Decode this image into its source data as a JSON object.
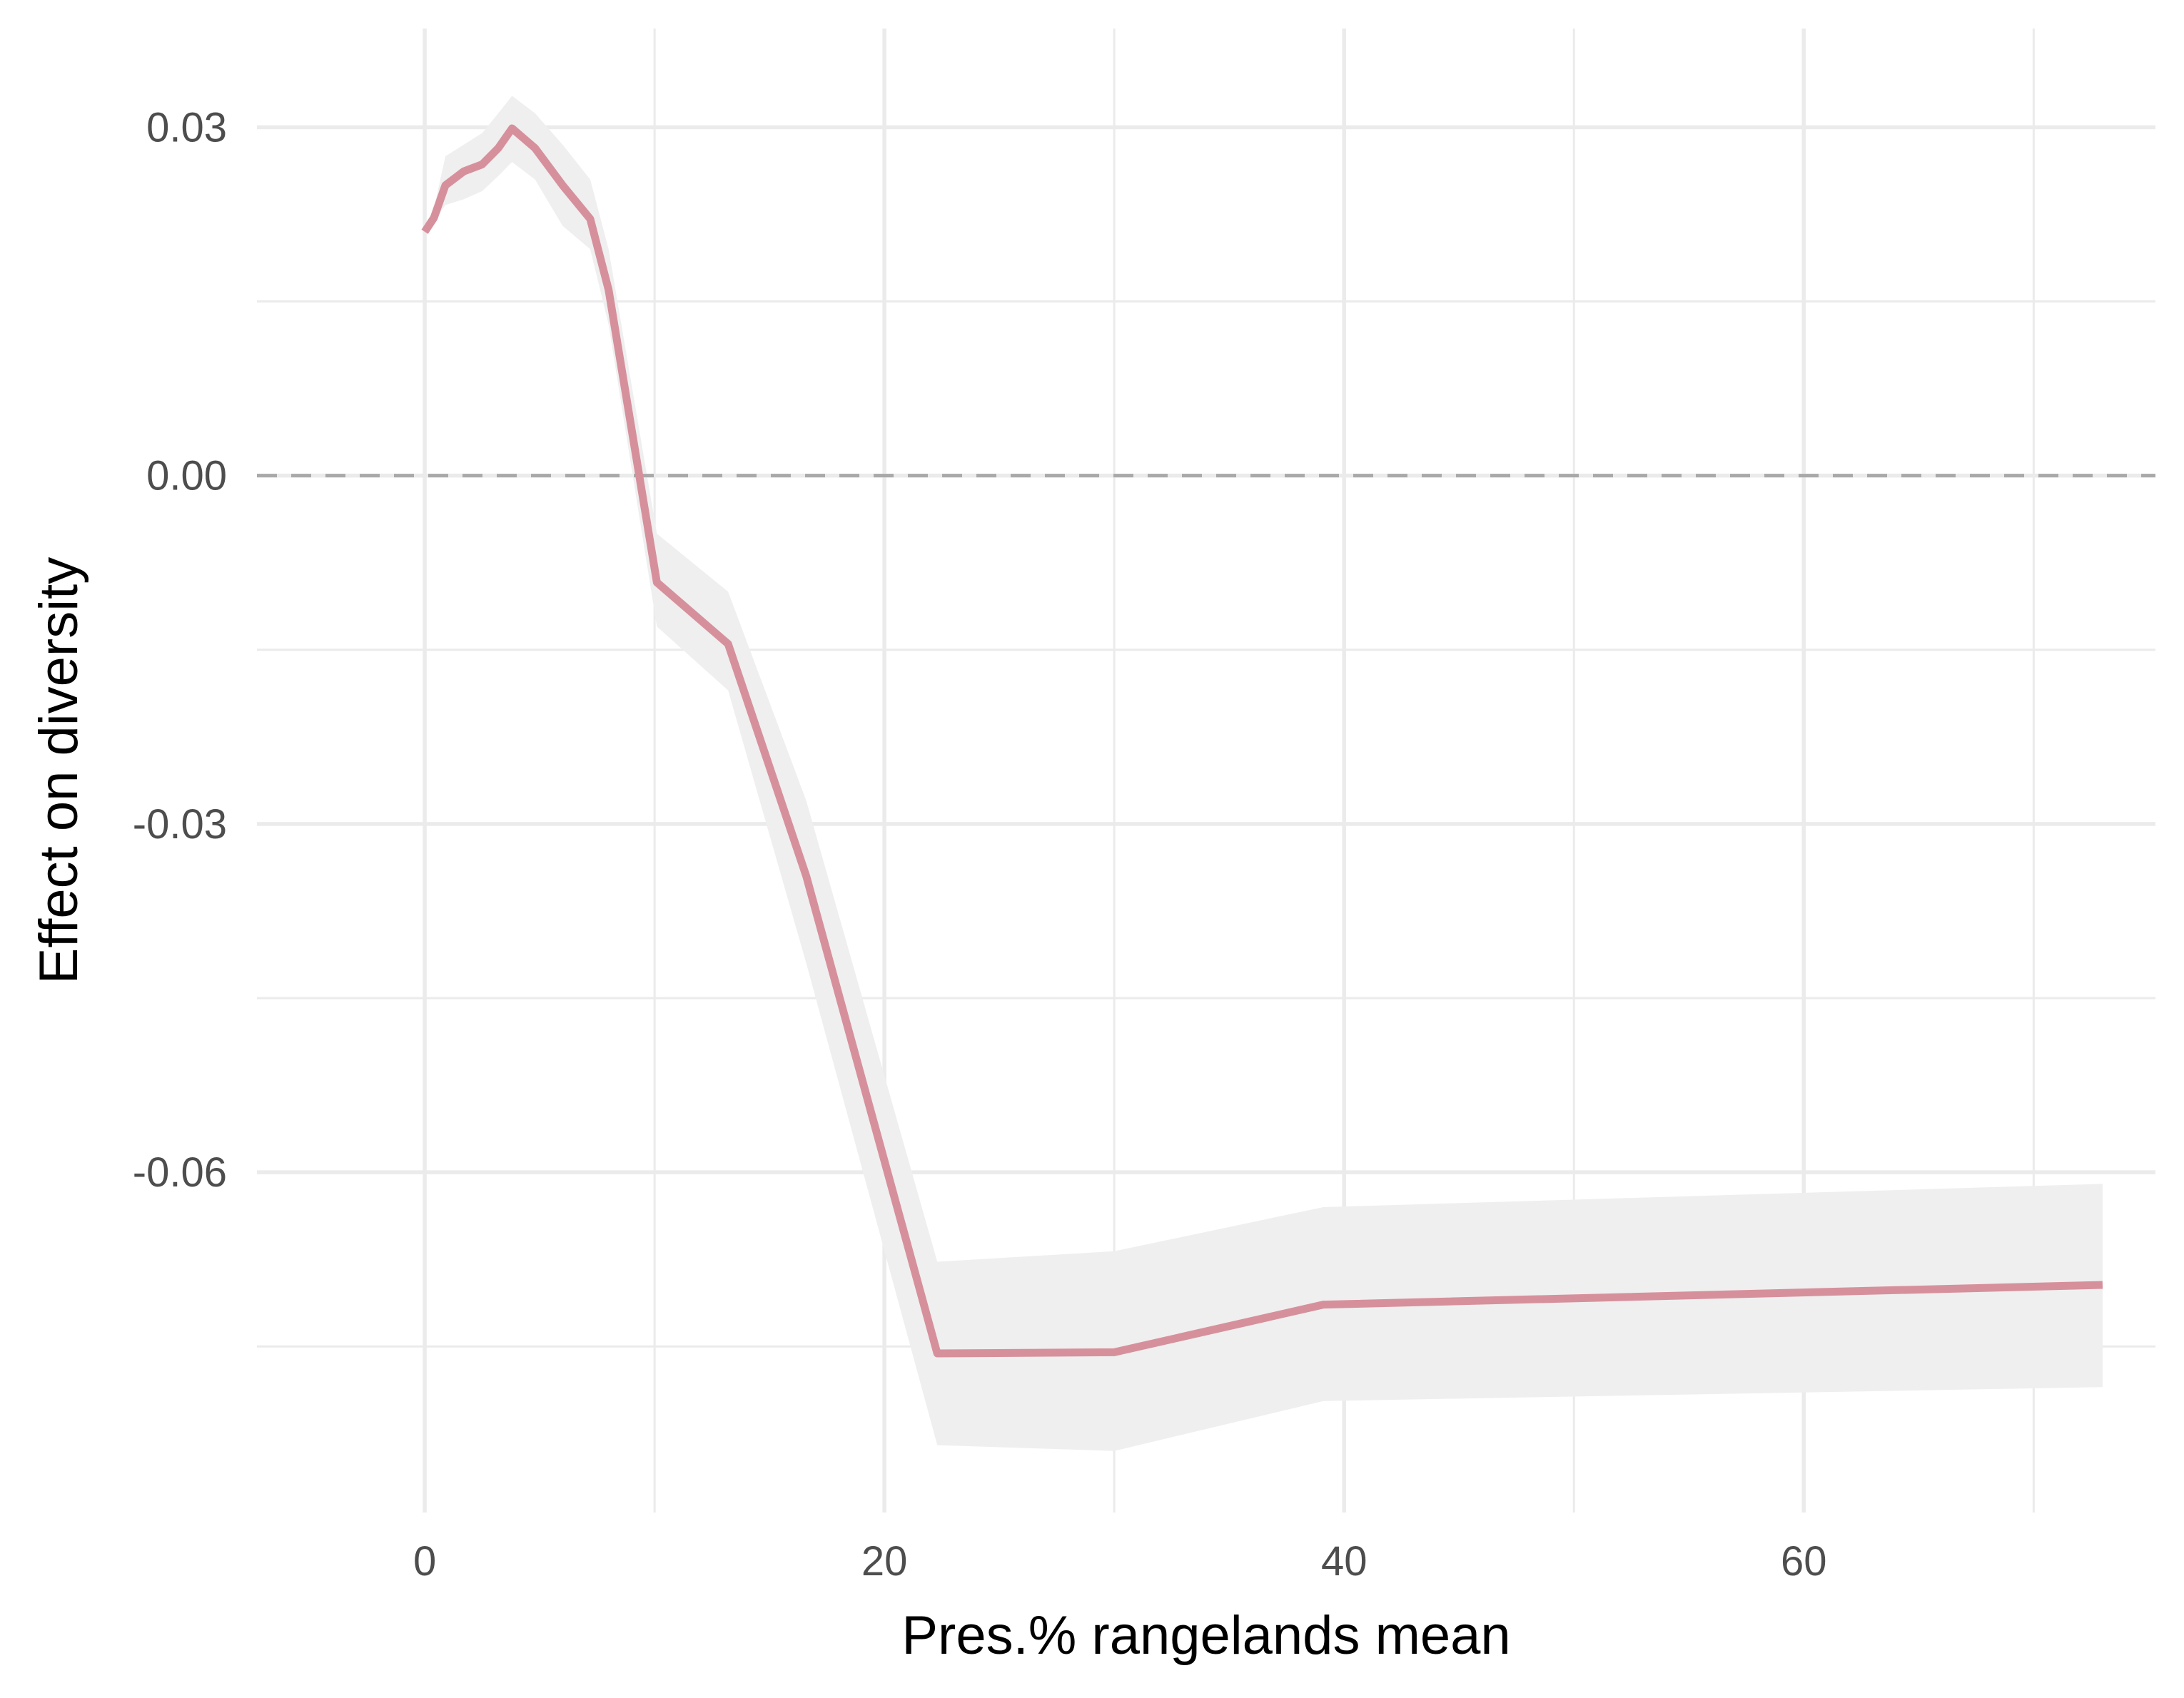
{
  "chart_data": {
    "type": "line",
    "xlabel": "Pres.% rangelands mean",
    "ylabel": "Effect on diversity",
    "x_ticks": [
      0,
      20,
      40,
      60
    ],
    "x_tick_labels": [
      "0",
      "20",
      "40",
      "60"
    ],
    "y_ticks": [
      0.03,
      0.0,
      -0.03,
      -0.06
    ],
    "y_tick_labels": [
      "0.03",
      "0.00",
      "-0.03",
      "-0.06"
    ],
    "xlim": [
      -7.3,
      75.3
    ],
    "ylim": [
      -0.0893,
      0.0385
    ],
    "grid": true,
    "reference_line": {
      "y": 0,
      "style": "dashed"
    },
    "colors": {
      "line": "#d6909c",
      "ribbon": "#efefef",
      "grid": "#ebebeb",
      "reference": "#a9a9a9"
    },
    "series": [
      {
        "x": [
          0.0,
          0.4,
          0.9,
          1.7,
          2.5,
          3.2,
          3.8,
          4.8,
          6.0,
          7.2,
          8.0,
          10.1,
          13.2,
          16.6,
          22.3,
          30.0,
          39.1,
          73.0
        ],
        "y": [
          0.021,
          0.0222,
          0.025,
          0.0262,
          0.0268,
          0.0282,
          0.0299,
          0.0282,
          0.025,
          0.0221,
          0.016,
          -0.0092,
          -0.0145,
          -0.0345,
          -0.0756,
          -0.0755,
          -0.0714,
          -0.0697
        ],
        "lower": [
          0.021,
          0.0218,
          0.0233,
          0.0238,
          0.0245,
          0.0258,
          0.027,
          0.0255,
          0.0215,
          0.0195,
          0.013,
          -0.013,
          -0.0185,
          -0.042,
          -0.0835,
          -0.084,
          -0.0797,
          -0.0785
        ],
        "upper": [
          0.021,
          0.023,
          0.0275,
          0.0285,
          0.0295,
          0.0312,
          0.0327,
          0.0312,
          0.0285,
          0.0255,
          0.0195,
          -0.005,
          -0.01,
          -0.028,
          -0.0677,
          -0.0668,
          -0.063,
          -0.061
        ]
      }
    ]
  }
}
